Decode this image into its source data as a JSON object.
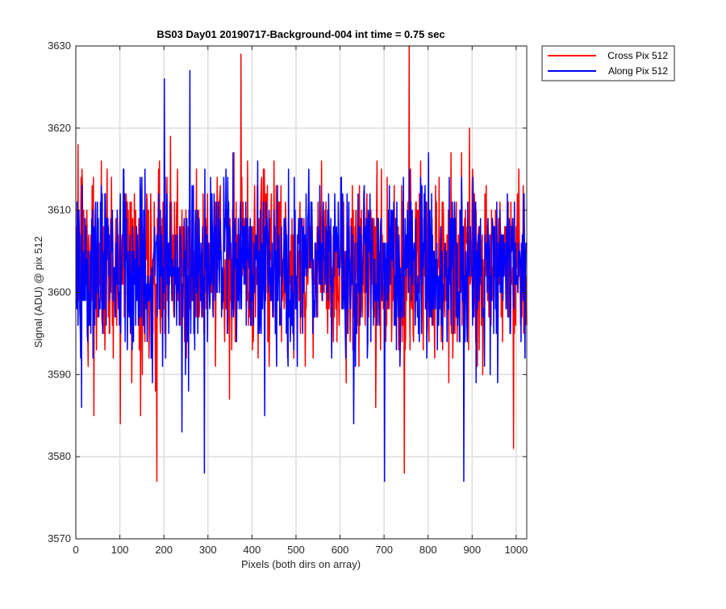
{
  "chart_data": {
    "type": "line",
    "title": "BS03 Day01 20190717-Background-004 int time = 0.75 sec",
    "xlabel": "Pixels (both dirs on array)",
    "ylabel": "Signal (ADU) @ pix 512",
    "xlim": [
      0,
      1024
    ],
    "ylim": [
      3570,
      3630
    ],
    "xticks": [
      0,
      100,
      200,
      300,
      400,
      500,
      600,
      700,
      800,
      900,
      1000
    ],
    "yticks": [
      3570,
      3580,
      3590,
      3600,
      3610,
      3620,
      3630
    ],
    "grid": true,
    "legend_position": "outside top-right",
    "series": [
      {
        "name": "Cross Pix 512",
        "color": "#ff0000",
        "mean": 3603.5,
        "std": 5.5,
        "min": 3577,
        "max": 3630,
        "spikes": [
          [
            183,
            3577
          ],
          [
            374,
            3629
          ],
          [
            756,
            3630
          ],
          [
            745,
            3578
          ],
          [
            993,
            3581
          ],
          [
            40,
            3585
          ],
          [
            100,
            3584
          ],
          [
            613,
            3589
          ]
        ]
      },
      {
        "name": "Along Pix 512",
        "color": "#0000ff",
        "mean": 3603.5,
        "std": 5.2,
        "min": 3577,
        "max": 3627,
        "spikes": [
          [
            200,
            3626
          ],
          [
            258,
            3627
          ],
          [
            291,
            3578
          ],
          [
            700,
            3577
          ],
          [
            880,
            3577
          ],
          [
            240,
            3583
          ],
          [
            630,
            3584
          ],
          [
            12,
            3586
          ]
        ]
      }
    ],
    "n_points": 1024
  }
}
